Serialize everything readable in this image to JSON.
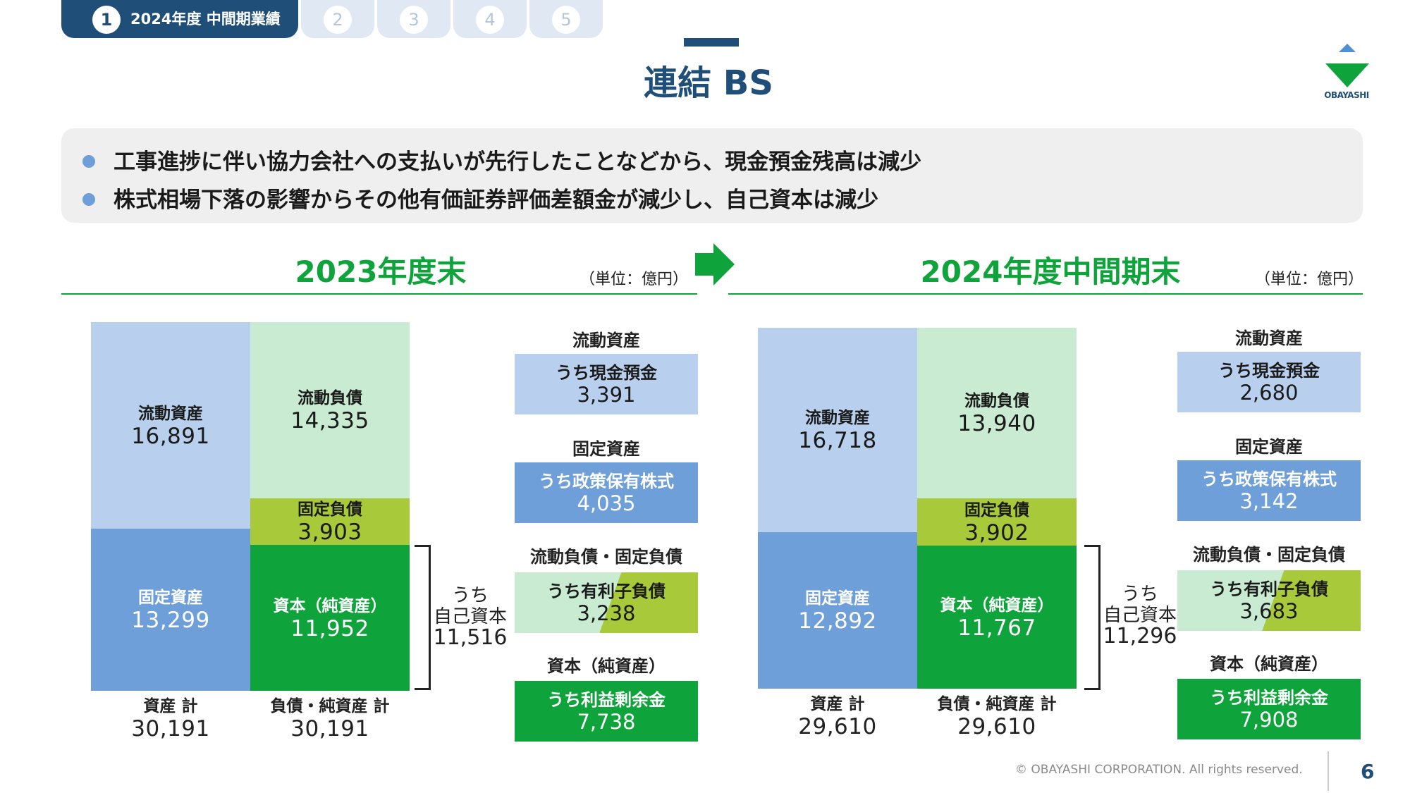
{
  "tabs": [
    {
      "num": "1",
      "label": "2024年度 中間期業績",
      "active": true
    },
    {
      "num": "2"
    },
    {
      "num": "3"
    },
    {
      "num": "4"
    },
    {
      "num": "5"
    }
  ],
  "title": "連結 BS",
  "logo_text": "OBAYASHI",
  "bullets": [
    "工事進捗に伴い協力会社への支払いが先行したことなどから、現金預金残高は減少",
    "株式相場下落の影響からその他有価証券評価差額金が減少し、自己資本は減少"
  ],
  "colors": {
    "current_assets": "#b8d0ee",
    "fixed_assets": "#6f9fd8",
    "current_liabilities": "#c8ebd2",
    "fixed_liabilities": "#a8c93a",
    "equity": "#0fa33b",
    "brand": "#1f4e79"
  },
  "chart_data": [
    {
      "type": "bar",
      "title": "2023年度末",
      "unit": "（単位：億円）",
      "assets": [
        {
          "label": "流動資産",
          "value": "16,891"
        },
        {
          "label": "固定資産",
          "value": "13,299"
        }
      ],
      "liabilities_equity": [
        {
          "label": "流動負債",
          "value": "14,335"
        },
        {
          "label": "固定負債",
          "value": "3,903"
        },
        {
          "label": "資本（純資産）",
          "value": "11,952"
        }
      ],
      "own_capital": {
        "label1": "うち",
        "label2": "自己資本",
        "value": "11,516"
      },
      "totals": [
        {
          "label": "資産 計",
          "value": "30,191"
        },
        {
          "label": "負債・純資産 計",
          "value": "30,191"
        }
      ],
      "details": [
        {
          "header": "流動資産",
          "label": "うち現金預金",
          "value": "3,391"
        },
        {
          "header": "固定資産",
          "label": "うち政策保有株式",
          "value": "4,035"
        },
        {
          "header": "流動負債・固定負債",
          "label": "うち有利子負債",
          "value": "3,238"
        },
        {
          "header": "資本（純資産）",
          "label": "うち利益剰余金",
          "value": "7,738"
        }
      ]
    },
    {
      "type": "bar",
      "title": "2024年度中間期末",
      "unit": "（単位：億円）",
      "assets": [
        {
          "label": "流動資産",
          "value": "16,718"
        },
        {
          "label": "固定資産",
          "value": "12,892"
        }
      ],
      "liabilities_equity": [
        {
          "label": "流動負債",
          "value": "13,940"
        },
        {
          "label": "固定負債",
          "value": "3,902"
        },
        {
          "label": "資本（純資産）",
          "value": "11,767"
        }
      ],
      "own_capital": {
        "label1": "うち",
        "label2": "自己資本",
        "value": "11,296"
      },
      "totals": [
        {
          "label": "資産 計",
          "value": "29,610"
        },
        {
          "label": "負債・純資産 計",
          "value": "29,610"
        }
      ],
      "details": [
        {
          "header": "流動資産",
          "label": "うち現金預金",
          "value": "2,680"
        },
        {
          "header": "固定資産",
          "label": "うち政策保有株式",
          "value": "3,142"
        },
        {
          "header": "流動負債・固定負債",
          "label": "うち有利子負債",
          "value": "3,683"
        },
        {
          "header": "資本（純資産）",
          "label": "うち利益剰余金",
          "value": "7,908"
        }
      ]
    }
  ],
  "footer": {
    "copyright": "© OBAYASHI CORPORATION. All rights reserved.",
    "page": "6"
  }
}
